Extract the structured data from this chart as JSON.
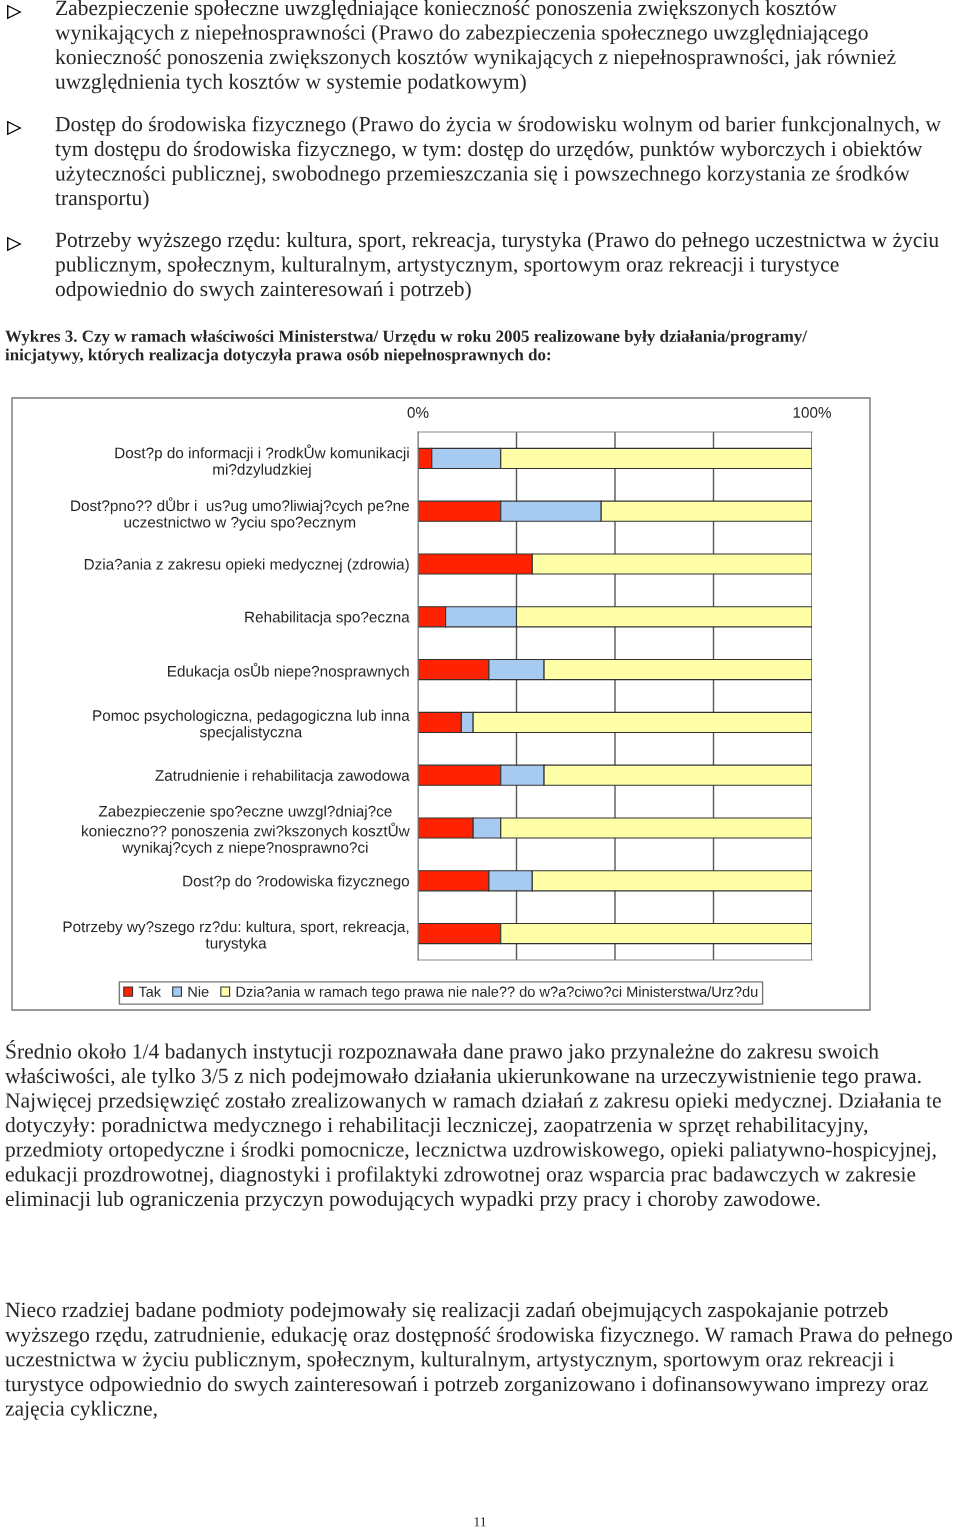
{
  "chart_data": {
    "type": "bar",
    "orientation": "horizontal",
    "stacked": true,
    "title": "Wykres 3. Czy w ramach właściwości Ministerstwa/ Urzędu w roku 2005 realizowane były działania/programy/ inicjatywy, których realizacja dotyczyła prawa osób niepełnosprawnych do:",
    "categories": [
      "Dost?p do informacji i ?rodkŮw komunikacji\nmi?dzyludzkiej",
      "Dost?pno?? dŮbr i  us?ug umo?liwiaj?cych pe?ne\nuczestnictwo w ?yciu spo?ecznym",
      "Dzia?ania z zakresu opieki medycznej (zdrowia)",
      "Rehabilitacja spo?eczna",
      "Edukacja osŮb niepe?nosprawnych",
      "Pomoc psychologiczna, pedagogiczna lub inna\nspecjalistyczna",
      "Zatrudnienie i rehabilitacja zawodowa",
      "Zabezpieczenie spo?eczne uwzgl?dniaj?ce\nkonieczno?? ponoszenia zwi?kszonych kosztŮw\nwynikaj?cych z niepe?nosprawno?ci",
      "Dost?p do ?rodowiska fizycznego",
      "Potrzeby wy?szego rz?du: kultura, sport, rekreacja,\nturystyka"
    ],
    "series": [
      {
        "name": "Tak",
        "color": "#ff2200",
        "values": [
          3.5,
          21,
          29,
          7,
          18,
          11,
          21,
          14,
          18,
          21
        ]
      },
      {
        "name": "Nie",
        "color": "#a6caf0",
        "values": [
          17.5,
          25.5,
          null,
          18,
          14,
          3,
          11,
          7,
          11,
          null
        ]
      },
      {
        "name": "Dzia?ania w ramach tego prawa nie nale?? do w?a?ciwo?ci Ministerstwa/Urz?du",
        "color": "#ffffa8",
        "values": [
          79,
          53.5,
          71,
          75,
          68,
          86,
          68,
          79,
          71,
          79
        ]
      }
    ],
    "xlim": [
      0,
      100
    ],
    "xticks": [
      {
        "value": 0,
        "label": "0%"
      },
      {
        "value": 25,
        "label": null
      },
      {
        "value": 50,
        "label": null
      },
      {
        "value": 75,
        "label": null
      },
      {
        "value": 100,
        "label": "100%"
      }
    ],
    "grid": "x",
    "legend": "bottom",
    "annotations": [
      "Zabezpieczenie społeczne uwzględniające konieczność ponoszenia zwiększonych kosztów wynikających z niepełnosprawności (Prawo do zabezpieczenia społecznego uwzględniającego konieczność ponoszenia zwiększonych kosztów wynikających z niepełnosprawności, jak również uwzględnienia tych kosztów w systemie podatkowym)",
      "Dostęp do środowiska fizycznego (Prawo do życia w środowisku wolnym od barier funkcjonalnych, w tym dostępu do środowiska fizycznego, w tym: dostęp do urzędów, punktów wyborczych i obiektów użyteczności publicznej, swobodnego przemieszczania się i powszechnego korzystania ze środków transportu)",
      "Potrzeby wyższego rzędu: kultura, sport, rekreacja, turystyka (Prawo do pełnego uczestnictwa w życiu publicznym, społecznym, kulturalnym, artystycznym, sportowym oraz rekreacji i turystyce odpowiednio do swych zainteresowań i potrzeb)",
      "Średnio około 1/4 badanych instytucji rozpoznawała dane prawo jako przynależne do zakresu swoich właściwości, ale tylko 3/5 z nich podejmowało działania ukierunkowane na urzeczywistnienie tego prawa. Najwięcej przedsięwzięć zostało zrealizowanych w ramach działań z zakresu opieki medycznej. Działania te dotyczyły: poradnictwa medycznego i rehabilitacji leczniczej, zaopatrzenia w sprzęt rehabilitacyjny, przedmioty ortopedyczne i środki pomocnicze, lecznictwa uzdrowiskowego, opieki paliatywno-hospicyjnej, edukacji prozdrowotnej, diagnostyki i profilaktyki zdrowotnej oraz wsparcia prac badawczych w zakresie eliminacji lub ograniczenia przyczyn powodujących wypadki przy pracy i choroby zawodowe.",
      "Nieco rzadziej badane podmioty podejmowały się realizacji zadań obejmujących zaspokajanie potrzeb wyższego rzędu, zatrudnienie, edukację oraz dostępność środowiska fizycznego. W ramach Prawa do pełnego uczestnictwa w życiu publicznym, społecznym, kulturalnym, artystycznym, sportowym oraz rekreacji i turystyce odpowiednio do swych zainteresowań i potrzeb zorganizowano i dofinansowywano imprezy oraz zajęcia cykliczne,",
      "11"
    ]
  }
}
